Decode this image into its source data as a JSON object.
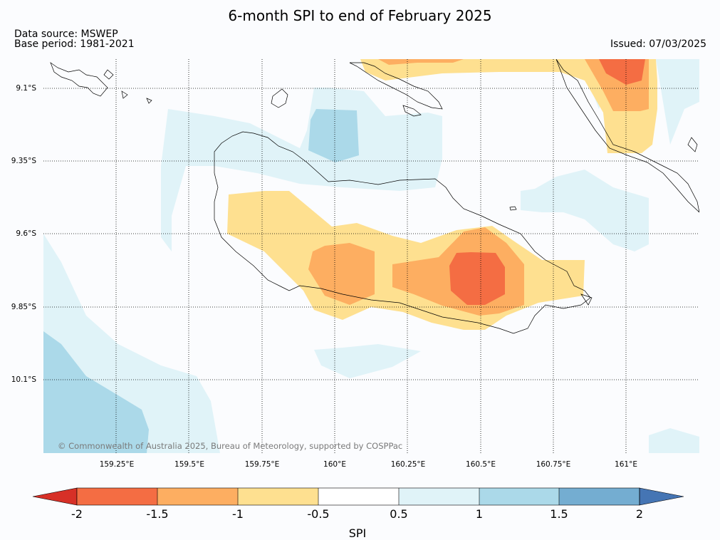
{
  "title": "6-month SPI to end of February 2025",
  "data_source": "Data source: MSWEP",
  "base_period": "Base period: 1981-2021",
  "issued": "Issued: 07/03/2025",
  "copyright": "© Commonwealth of Australia 2025, Bureau of Meteorology, supported by COSPPac",
  "lat_labels": [
    "9.1°S",
    "9.35°S",
    "9.6°S",
    "9.85°S",
    "10.1°S"
  ],
  "lon_labels": [
    "159.25°E",
    "159.5°E",
    "159.75°E",
    "160°E",
    "160.25°E",
    "160.5°E",
    "160.75°E",
    "161°E"
  ],
  "colorbar": {
    "label": "SPI",
    "ticks": [
      "-2",
      "-1.5",
      "-1",
      "-0.5",
      "0.5",
      "1",
      "1.5",
      "2"
    ],
    "colors": {
      "below_-2": "#d73027",
      "-2_-1.5": "#f46d43",
      "-1.5_-1": "#fdae61",
      "-1_-0.5": "#fee090",
      "-0.5_0.5": "#ffffff",
      "0.5_1": "#e0f3f8",
      "1_1.5": "#abd9e9",
      "1.5_2": "#74add1",
      "above_2": "#4575b4"
    }
  }
}
